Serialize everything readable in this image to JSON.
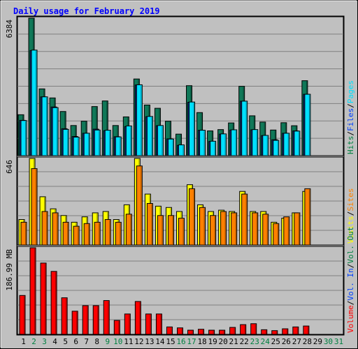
{
  "chart_data": {
    "type": "bar",
    "title": "Daily usage for February 2019",
    "categories": [
      "1",
      "2",
      "3",
      "4",
      "5",
      "6",
      "7",
      "8",
      "9",
      "10",
      "11",
      "12",
      "13",
      "14",
      "15",
      "16",
      "17",
      "18",
      "19",
      "20",
      "21",
      "22",
      "23",
      "24",
      "25",
      "26",
      "27",
      "28",
      "29",
      "30",
      "31"
    ],
    "weekend_days": [
      "2",
      "3",
      "9",
      "10",
      "16",
      "17",
      "23",
      "24",
      "30",
      "31"
    ],
    "panels": [
      {
        "id": "hits-files-pages",
        "max_label": "6384",
        "ymax": 6384,
        "side_legend": [
          {
            "text": "Hits",
            "color": "#008040"
          },
          {
            "text": "Files",
            "color": "#0040ff"
          },
          {
            "text": "Pages",
            "color": "#00e0ff"
          }
        ],
        "series": [
          {
            "name": "Hits",
            "color": "#107858",
            "values": [
              1900,
              6384,
              3100,
              2680,
              2050,
              1400,
              1600,
              2280,
              2540,
              1400,
              1800,
              3560,
              2350,
              2200,
              1600,
              1000,
              3250,
              2000,
              1150,
              1210,
              1520,
              3220,
              1850,
              1560,
              1190,
              1530,
              1390,
              3480,
              0,
              0,
              0
            ]
          },
          {
            "name": "Files",
            "color": "#103090",
            "values": [
              1640,
              4880,
              2730,
              2260,
              1250,
              890,
              1040,
              1230,
              1160,
              880,
              1350,
              3280,
              1810,
              1390,
              780,
              480,
              2480,
              1180,
              660,
              1000,
              1190,
              2530,
              1200,
              930,
              740,
              1040,
              1150,
              2850,
              0,
              0,
              0
            ]
          },
          {
            "name": "Pages",
            "color": "#00e0ff",
            "values": [
              1630,
              4900,
              2730,
              2230,
              1220,
              860,
              1040,
              1190,
              1180,
              870,
              1380,
              3290,
              1820,
              1400,
              770,
              500,
              2490,
              1180,
              670,
              1010,
              1200,
              2530,
              1210,
              940,
              710,
              1040,
              1140,
              2850,
              0,
              0,
              0
            ]
          }
        ]
      },
      {
        "id": "visits-sites",
        "max_label": "646",
        "ymax": 646,
        "side_legend": [
          {
            "text": "Visits",
            "color": "#ffff00"
          },
          {
            "text": "Sites",
            "color": "#ff8000"
          }
        ],
        "series": [
          {
            "name": "Visits",
            "color": "#ffff00",
            "values": [
              190,
              646,
              360,
              270,
              220,
              170,
              210,
              240,
              250,
              190,
              300,
              646,
              380,
              290,
              280,
              250,
              450,
              300,
              250,
              260,
              250,
              400,
              250,
              250,
              170,
              200,
              240,
              400,
              0,
              0,
              0
            ]
          },
          {
            "name": "Sites",
            "color": "#ff8000",
            "values": [
              170,
              570,
              250,
              240,
              170,
              140,
              160,
              170,
              190,
              170,
              230,
              590,
              310,
              220,
              220,
              200,
              420,
              280,
              220,
              250,
              240,
              380,
              240,
              230,
              160,
              210,
              240,
              420,
              0,
              0,
              0
            ]
          }
        ]
      },
      {
        "id": "volume",
        "max_label": "186.99 MB",
        "ymax": 186.99,
        "side_legend": [
          {
            "text": "Volume",
            "color": "#ff0000"
          },
          {
            "text": "Vol. In",
            "color": "#0040ff"
          },
          {
            "text": "Vol. Out",
            "color": "#008040"
          }
        ],
        "series": [
          {
            "name": "Volume",
            "color": "#ff0000",
            "values": [
              84,
              187,
              154,
              136,
              79,
              50,
              62,
              62,
              73,
              30,
              44,
              71,
              44,
              44,
              16,
              14,
              9,
              11,
              9,
              9,
              15,
              21,
              23,
              10,
              8,
              12,
              16,
              18,
              0,
              0,
              0
            ]
          }
        ]
      }
    ],
    "legend_separator": "/"
  }
}
